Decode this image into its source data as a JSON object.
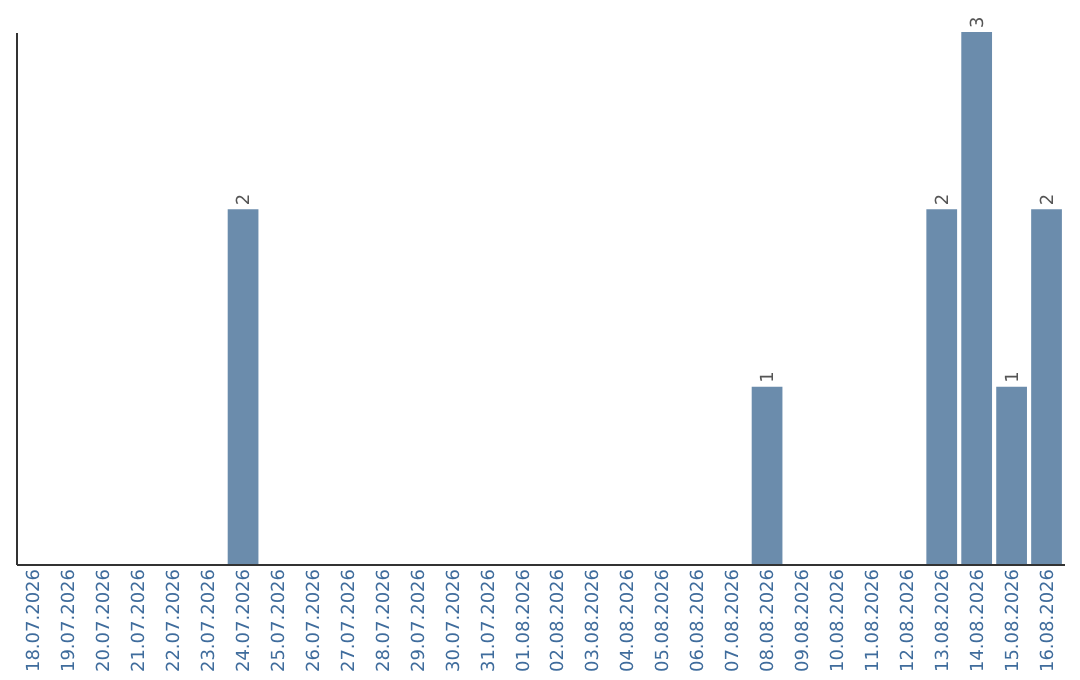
{
  "chart_data": {
    "type": "bar",
    "categories": [
      "18.07.2026",
      "19.07.2026",
      "20.07.2026",
      "21.07.2026",
      "22.07.2026",
      "23.07.2026",
      "24.07.2026",
      "25.07.2026",
      "26.07.2026",
      "27.07.2026",
      "28.07.2026",
      "29.07.2026",
      "30.07.2026",
      "31.07.2026",
      "01.08.2026",
      "02.08.2026",
      "03.08.2026",
      "04.08.2026",
      "05.08.2026",
      "06.08.2026",
      "07.08.2026",
      "08.08.2026",
      "09.08.2026",
      "10.08.2026",
      "11.08.2026",
      "12.08.2026",
      "13.08.2026",
      "14.08.2026",
      "15.08.2026",
      "16.08.2026"
    ],
    "values": [
      0,
      0,
      0,
      0,
      0,
      0,
      2,
      0,
      0,
      0,
      0,
      0,
      0,
      0,
      0,
      0,
      0,
      0,
      0,
      0,
      0,
      1,
      0,
      0,
      0,
      0,
      2,
      3,
      1,
      2
    ],
    "value_labels": [
      null,
      null,
      null,
      null,
      null,
      null,
      "2",
      null,
      null,
      null,
      null,
      null,
      null,
      null,
      null,
      null,
      null,
      null,
      null,
      null,
      null,
      "1",
      null,
      null,
      null,
      null,
      "2",
      "3",
      "1",
      "2"
    ],
    "color": "#6b8cac",
    "ylim": [
      0,
      3
    ],
    "tick_labels": "x",
    "grid": false
  }
}
